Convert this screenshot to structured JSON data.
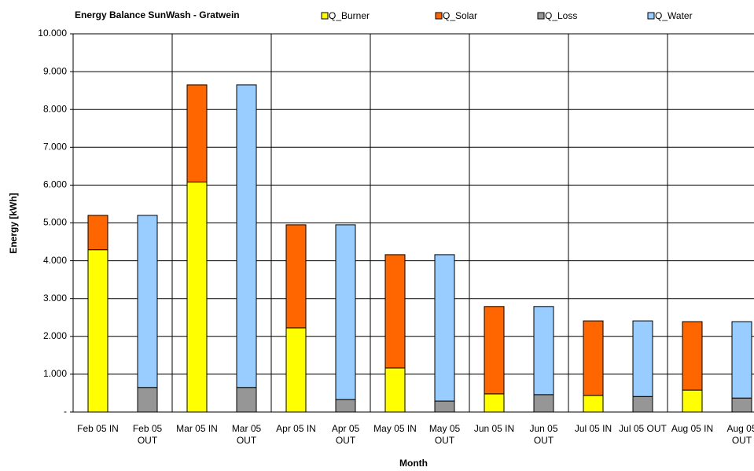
{
  "chart_data": {
    "type": "stacked_bar",
    "title": "Energy Balance SunWash - Gratwein",
    "x_label": "Month",
    "y_label": "Energy [kWh]",
    "categories": [
      "Feb 05 IN",
      "Feb 05 OUT",
      "Mar 05 IN",
      "Mar 05 OUT",
      "Apr 05 IN",
      "Apr 05 OUT",
      "May 05 IN",
      "May 05 OUT",
      "Jun 05 IN",
      "Jun 05 OUT",
      "Jul 05 IN",
      "Jul 05 OUT",
      "Aug 05 IN",
      "Aug 05 OUT"
    ],
    "series": [
      {
        "name": "Q_Burner",
        "color": "#ffff00",
        "values": [
          4290,
          null,
          6080,
          null,
          2225,
          null,
          1165,
          null,
          480,
          null,
          440,
          null,
          580,
          null
        ]
      },
      {
        "name": "Q_Solar",
        "color": "#ff6600",
        "values": [
          910,
          null,
          2570,
          null,
          2725,
          null,
          2995,
          null,
          2310,
          null,
          1970,
          null,
          1810,
          null
        ]
      },
      {
        "name": "Q_Loss",
        "color": "#969696",
        "values": [
          null,
          650,
          null,
          650,
          null,
          330,
          null,
          290,
          null,
          460,
          null,
          410,
          null,
          370
        ]
      },
      {
        "name": "Q_Water",
        "color": "#99ccff",
        "values": [
          null,
          4550,
          null,
          8000,
          null,
          4620,
          null,
          3870,
          null,
          2330,
          null,
          2000,
          null,
          2020
        ]
      }
    ],
    "ylim": [
      0,
      10000
    ],
    "yticks": [
      {
        "value": 0,
        "label": "-"
      },
      {
        "value": 1000,
        "label": "1.000"
      },
      {
        "value": 2000,
        "label": "2.000"
      },
      {
        "value": 3000,
        "label": "3.000"
      },
      {
        "value": 4000,
        "label": "4.000"
      },
      {
        "value": 5000,
        "label": "5.000"
      },
      {
        "value": 6000,
        "label": "6.000"
      },
      {
        "value": 7000,
        "label": "7.000"
      },
      {
        "value": 8000,
        "label": "8.000"
      },
      {
        "value": 9000,
        "label": "9.000"
      },
      {
        "value": 10000,
        "label": "10.000"
      }
    ],
    "grid": true,
    "legend": "top"
  }
}
